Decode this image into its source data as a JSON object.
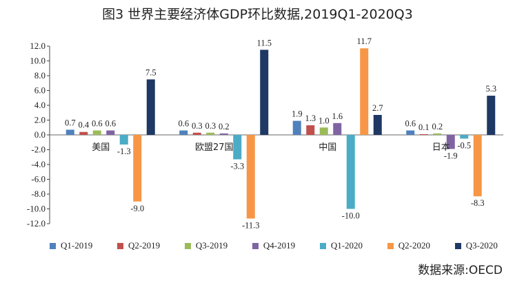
{
  "chart_data": {
    "type": "bar",
    "title": "图3 世界主要经济体GDP环比数据,2019Q1-2020Q3",
    "categories": [
      "美国",
      "欧盟27国",
      "中国",
      "日本"
    ],
    "series": [
      {
        "name": "Q1-2019",
        "color": "#4f81bd",
        "values": [
          0.7,
          0.6,
          1.9,
          0.6
        ],
        "labels": [
          "0.7",
          "0.6",
          "1.9",
          "0.6"
        ]
      },
      {
        "name": "Q2-2019",
        "color": "#c0504d",
        "values": [
          0.4,
          0.3,
          1.3,
          0.1
        ],
        "labels": [
          "0.4",
          "0.3",
          "1.3",
          "0.1"
        ]
      },
      {
        "name": "Q3-2019",
        "color": "#9bbb59",
        "values": [
          0.6,
          0.3,
          1.0,
          0.2
        ],
        "labels": [
          "0.6",
          "0.3",
          "1.0",
          "0.2"
        ]
      },
      {
        "name": "Q4-2019",
        "color": "#8064a2",
        "values": [
          0.6,
          0.2,
          1.6,
          -1.9
        ],
        "labels": [
          "0.6",
          "0.2",
          "1.6",
          "-1.9"
        ]
      },
      {
        "name": "Q1-2020",
        "color": "#4bacc6",
        "values": [
          -1.3,
          -3.3,
          -10.0,
          -0.5
        ],
        "labels": [
          "-1.3",
          "-3.3",
          "-10.0",
          "-0.5"
        ]
      },
      {
        "name": "Q2-2020",
        "color": "#f79646",
        "values": [
          -9.0,
          -11.3,
          11.7,
          -8.3
        ],
        "labels": [
          "-9.0",
          "-11.3",
          "11.7",
          "-8.3"
        ]
      },
      {
        "name": "Q3-2020",
        "color": "#1f3864",
        "values": [
          7.5,
          11.5,
          2.7,
          5.3
        ],
        "labels": [
          "7.5",
          "11.5",
          "2.7",
          "5.3"
        ]
      }
    ],
    "yticks": [
      "12.0",
      "10.0",
      "8.0",
      "6.0",
      "4.0",
      "2.0",
      "0.0",
      "-2.0",
      "-4.0",
      "-6.0",
      "-8.0",
      "-10.0",
      "-12.0"
    ],
    "ylim": [
      -12,
      12
    ],
    "xlabel": "",
    "ylabel": "",
    "legend_position": "bottom",
    "source": "数据来源:OECD"
  }
}
